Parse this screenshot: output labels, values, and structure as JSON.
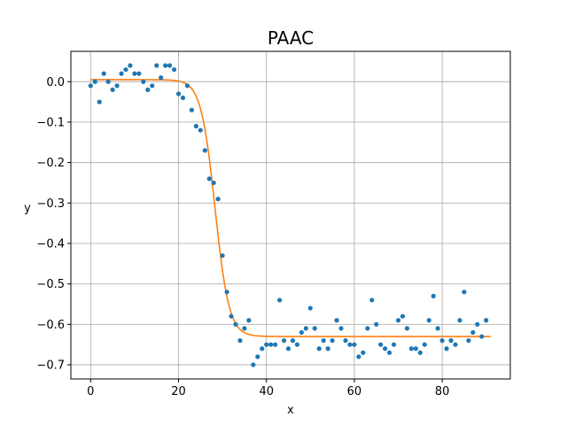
{
  "chart_data": {
    "type": "scatter",
    "title": "PAAC",
    "xlabel": "x",
    "ylabel": "y",
    "xlim": [
      -4.5,
      95.5
    ],
    "ylim": [
      -0.735,
      0.075
    ],
    "xticks": [
      0,
      20,
      40,
      60,
      80
    ],
    "yticks": [
      0.0,
      -0.1,
      -0.2,
      -0.3,
      -0.4,
      -0.5,
      -0.6,
      -0.7
    ],
    "xtick_labels": [
      "0",
      "20",
      "40",
      "60",
      "80"
    ],
    "ytick_labels": [
      "0.0",
      "−0.1",
      "−0.2",
      "−0.3",
      "−0.4",
      "−0.5",
      "−0.6",
      "−0.7"
    ],
    "grid": true,
    "series": [
      {
        "kind": "scatter",
        "color": "#1f77b4",
        "x": [
          0,
          1,
          2,
          3,
          4,
          5,
          6,
          7,
          8,
          9,
          10,
          11,
          12,
          13,
          14,
          15,
          16,
          17,
          18,
          19,
          20,
          21,
          22,
          23,
          24,
          25,
          26,
          27,
          28,
          29,
          30,
          31,
          32,
          33,
          34,
          35,
          36,
          37,
          38,
          39,
          40,
          41,
          42,
          43,
          44,
          45,
          46,
          47,
          48,
          49,
          50,
          51,
          52,
          53,
          54,
          55,
          56,
          57,
          58,
          59,
          60,
          61,
          62,
          63,
          64,
          65,
          66,
          67,
          68,
          69,
          70,
          71,
          72,
          73,
          74,
          75,
          76,
          77,
          78,
          79,
          80,
          81,
          82,
          83,
          84,
          85,
          86,
          87,
          88,
          89,
          90
        ],
        "y": [
          -0.01,
          0.0,
          -0.05,
          0.02,
          0.0,
          -0.02,
          -0.01,
          0.02,
          0.03,
          0.04,
          0.02,
          0.02,
          0.0,
          -0.02,
          -0.01,
          0.04,
          0.01,
          0.04,
          0.04,
          0.03,
          -0.03,
          -0.04,
          -0.01,
          -0.07,
          -0.11,
          -0.12,
          -0.17,
          -0.24,
          -0.25,
          -0.29,
          -0.43,
          -0.52,
          -0.58,
          -0.6,
          -0.64,
          -0.61,
          -0.59,
          -0.7,
          -0.68,
          -0.66,
          -0.65,
          -0.65,
          -0.65,
          -0.54,
          -0.64,
          -0.66,
          -0.64,
          -0.65,
          -0.62,
          -0.61,
          -0.56,
          -0.61,
          -0.66,
          -0.64,
          -0.66,
          -0.64,
          -0.59,
          -0.61,
          -0.64,
          -0.65,
          -0.65,
          -0.68,
          -0.67,
          -0.61,
          -0.54,
          -0.6,
          -0.65,
          -0.66,
          -0.67,
          -0.65,
          -0.59,
          -0.58,
          -0.61,
          -0.66,
          -0.66,
          -0.67,
          -0.65,
          -0.59,
          -0.53,
          -0.61,
          -0.64,
          -0.66,
          -0.64,
          -0.65,
          -0.59,
          -0.52,
          -0.64,
          -0.62,
          -0.6,
          -0.63,
          -0.59
        ]
      },
      {
        "kind": "line",
        "color": "#ff7f0e",
        "model": "logistic",
        "upper": 0.005,
        "lower": -0.63,
        "midpoint": 28.3,
        "width": 1.6,
        "x_range": [
          0,
          91
        ]
      }
    ]
  }
}
